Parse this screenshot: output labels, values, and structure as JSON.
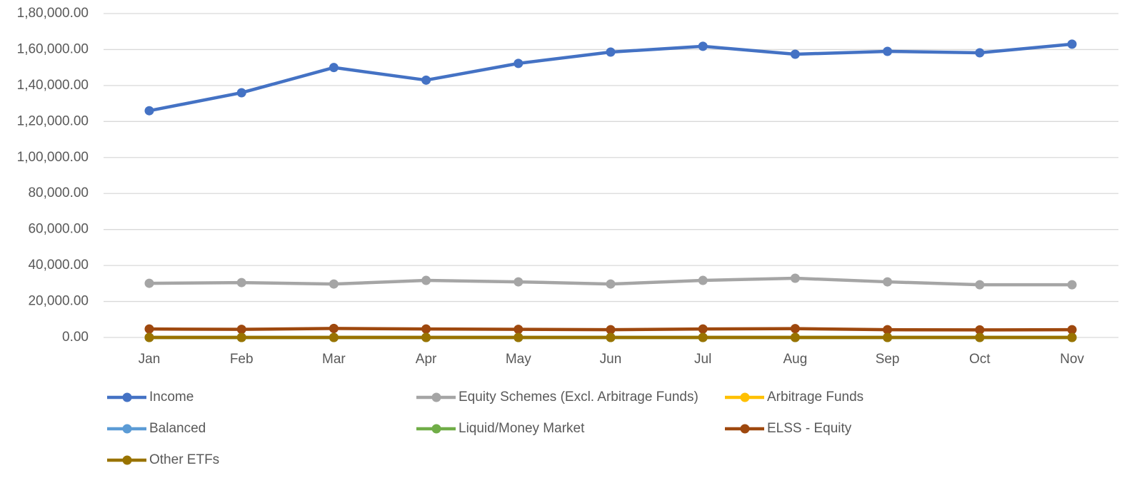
{
  "chart_data": {
    "type": "line",
    "categories": [
      "Jan",
      "Feb",
      "Mar",
      "Apr",
      "May",
      "Jun",
      "Jul",
      "Aug",
      "Sep",
      "Oct",
      "Nov"
    ],
    "series": [
      {
        "name": "Income",
        "color": "#4472c4",
        "values": [
          126000,
          136000,
          150000,
          143000,
          152300,
          158600,
          161800,
          157400,
          159000,
          158200,
          163000
        ]
      },
      {
        "name": "Equity Schemes (Excl. Arbitrage Funds)",
        "color": "#a5a5a5",
        "values": [
          30100,
          30500,
          29700,
          31700,
          30900,
          29700,
          31700,
          32900,
          30900,
          29300,
          29300
        ]
      },
      {
        "name": "Arbitrage Funds",
        "color": "#ffc000",
        "values": [
          0,
          0,
          0,
          0,
          0,
          0,
          0,
          0,
          0,
          0,
          0
        ]
      },
      {
        "name": "Balanced",
        "color": "#5b9bd5",
        "values": [
          0,
          0,
          0,
          0,
          0,
          0,
          0,
          0,
          0,
          0,
          0
        ]
      },
      {
        "name": "Liquid/Money Market",
        "color": "#70ad47",
        "values": [
          0,
          0,
          0,
          0,
          0,
          0,
          0,
          0,
          0,
          0,
          0
        ]
      },
      {
        "name": "ELSS - Equity",
        "color": "#9e480e",
        "values": [
          4700,
          4500,
          5000,
          4700,
          4500,
          4300,
          4700,
          4900,
          4300,
          4200,
          4300
        ]
      },
      {
        "name": "Other ETFs",
        "color": "#997300",
        "values": [
          0,
          0,
          0,
          0,
          0,
          0,
          0,
          0,
          0,
          0,
          0
        ]
      }
    ],
    "ylim": [
      0,
      180000
    ],
    "yticks": [
      {
        "value": 0,
        "label": "0.00"
      },
      {
        "value": 20000,
        "label": "20,000.00"
      },
      {
        "value": 40000,
        "label": "40,000.00"
      },
      {
        "value": 60000,
        "label": "60,000.00"
      },
      {
        "value": 80000,
        "label": "80,000.00"
      },
      {
        "value": 100000,
        "label": "1,00,000.00"
      },
      {
        "value": 120000,
        "label": "1,20,000.00"
      },
      {
        "value": 140000,
        "label": "1,40,000.00"
      },
      {
        "value": 160000,
        "label": "1,60,000.00"
      },
      {
        "value": 180000,
        "label": "1,80,000.00"
      }
    ],
    "grid": true,
    "legend": "bottom"
  }
}
